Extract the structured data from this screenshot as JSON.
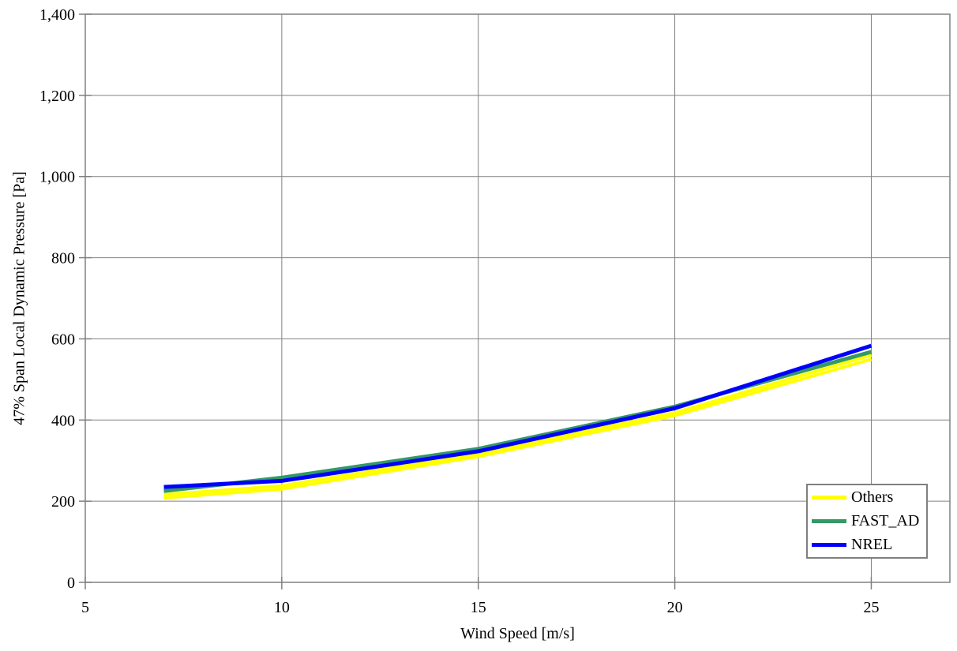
{
  "chart_data": {
    "type": "line",
    "title": "",
    "xlabel": "Wind Speed [m/s]",
    "ylabel": "47% Span Local Dynamic Pressure [Pa]",
    "xlim": [
      5,
      27
    ],
    "ylim": [
      0,
      1400
    ],
    "x_ticks": [
      5,
      10,
      15,
      20,
      25
    ],
    "x_tick_labels": [
      "5",
      "10",
      "15",
      "20",
      "25"
    ],
    "y_ticks": [
      0,
      200,
      400,
      600,
      800,
      1000,
      1200,
      1400
    ],
    "y_tick_labels": [
      "0",
      "200",
      "400",
      "600",
      "800",
      "1,000",
      "1,200",
      "1,400"
    ],
    "grid": true,
    "legend_position": "inside-bottom-right",
    "x": [
      7,
      10,
      15,
      20,
      25
    ],
    "series": [
      {
        "name": "Others",
        "color": "#FFFF00",
        "width": 4,
        "values": [
          216,
          238,
          317,
          418,
          560
        ]
      },
      {
        "name": "Others",
        "color": "#FFFF00",
        "width": 4,
        "values": [
          208,
          230,
          310,
          411,
          550
        ]
      },
      {
        "name": "FAST_AD",
        "color": "#339966",
        "width": 5,
        "values": [
          225,
          258,
          329,
          433,
          568
        ]
      },
      {
        "name": "NREL",
        "color": "#0000FF",
        "width": 5,
        "values": [
          235,
          250,
          323,
          429,
          583
        ]
      }
    ],
    "legend": {
      "entries": [
        {
          "label": "Others",
          "color": "#FFFF00"
        },
        {
          "label": "FAST_AD",
          "color": "#339966"
        },
        {
          "label": "NREL",
          "color": "#0000FF"
        }
      ]
    },
    "colors": {
      "grid": "#808080",
      "axis": "#808080",
      "text": "#000000",
      "background": "#FFFFFF"
    }
  }
}
